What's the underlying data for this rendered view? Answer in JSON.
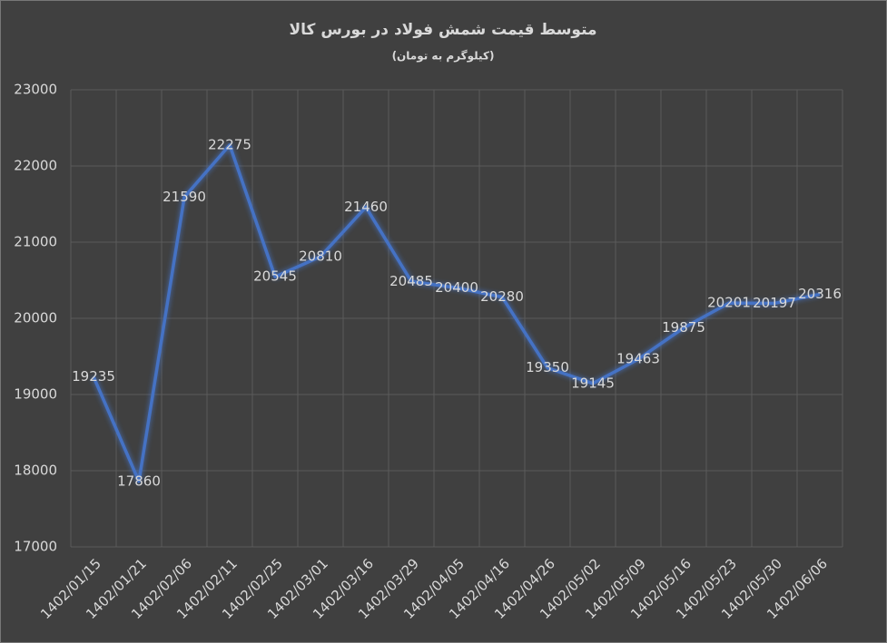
{
  "chart_data": {
    "type": "line",
    "title": "متوسط قیمت شمش فولاد در بورس کالا",
    "subtitle": "(کیلوگرم به تومان)",
    "categories": [
      "1402/01/15",
      "1402/01/21",
      "1402/02/06",
      "1402/02/11",
      "1402/02/25",
      "1402/03/01",
      "1402/03/16",
      "1402/03/29",
      "1402/04/05",
      "1402/04/16",
      "1402/04/26",
      "1402/05/02",
      "1402/05/09",
      "1402/05/16",
      "1402/05/23",
      "1402/05/30",
      "1402/06/06"
    ],
    "values": [
      19235,
      17860,
      21590,
      22275,
      20545,
      20810,
      21460,
      20485,
      20400,
      20280,
      19350,
      19145,
      19463,
      19875,
      20201,
      20197,
      20316
    ],
    "color": "#4472c4",
    "ylim": [
      17000,
      23000
    ],
    "yticks": [
      17000,
      18000,
      19000,
      20000,
      21000,
      22000,
      23000
    ],
    "grid": true
  }
}
